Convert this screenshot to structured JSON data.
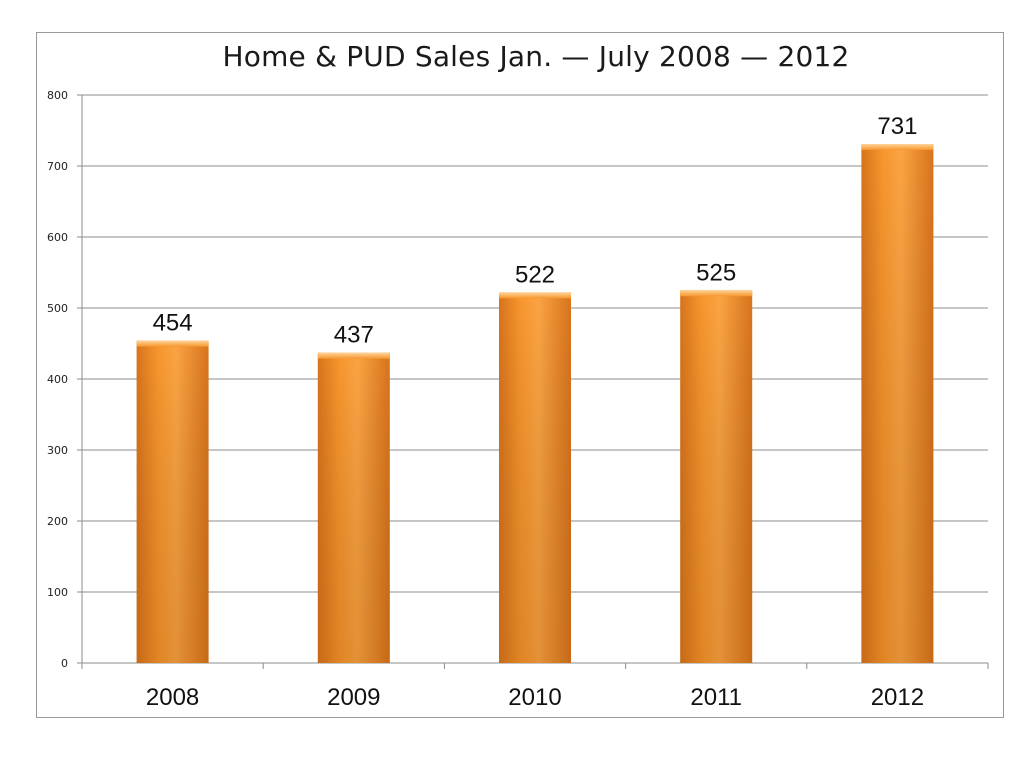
{
  "chart_data": {
    "type": "bar",
    "title": "Home & PUD Sales Jan. — July 2008 — 2012",
    "xlabel": "",
    "ylabel": "",
    "categories": [
      "2008",
      "2009",
      "2010",
      "2011",
      "2012"
    ],
    "values": [
      454,
      437,
      522,
      525,
      731
    ],
    "ylim": [
      0,
      800
    ],
    "yticks": [
      0,
      100,
      200,
      300,
      400,
      500,
      600,
      700,
      800
    ],
    "grid": true,
    "legend": "none",
    "bar_color": "#f0902a",
    "bar_color_dark": "#d8741c",
    "bar_color_light": "#ffb45a"
  }
}
